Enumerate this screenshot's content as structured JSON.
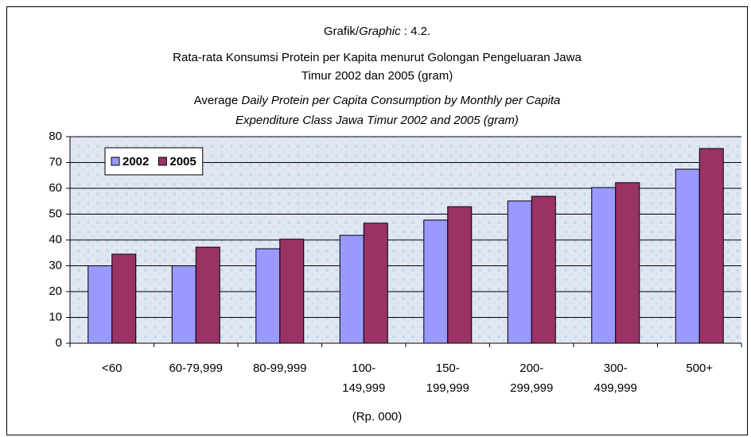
{
  "chart_data": {
    "type": "bar",
    "title_lines": [
      [
        {
          "text": "Grafik/"
        },
        {
          "text": "Graphic",
          "italic": true
        },
        {
          "text": " : 4.2."
        }
      ],
      [
        {
          "text": "Rata-rata Konsumsi Protein per Kapita menurut Golongan Pengeluaran Jawa"
        }
      ],
      [
        {
          "text": "Timur 2002 dan 2005 (gram)"
        }
      ],
      [
        {
          "text": "Average "
        },
        {
          "text": "Daily Protein per Capita Consumption by Monthly per Capita",
          "italic": true
        }
      ],
      [
        {
          "text": "Expenditure Class Jawa Timur 2002 and 2005 (gram)",
          "italic": true
        }
      ]
    ],
    "x_label": "(Rp. 000)",
    "categories": [
      [
        "<60"
      ],
      [
        "60-79,999"
      ],
      [
        "80-99,999"
      ],
      [
        "100-",
        "149,999"
      ],
      [
        "150-",
        "199,999"
      ],
      [
        "200-",
        "299,999"
      ],
      [
        "300-",
        "499,999"
      ],
      [
        "500+"
      ]
    ],
    "series": [
      {
        "name": "2002",
        "color": "#9999ff",
        "values": [
          30,
          30,
          36.6,
          41.8,
          47.7,
          55.1,
          60.3,
          67.4
        ]
      },
      {
        "name": "2005",
        "color": "#993366",
        "values": [
          34.5,
          37.2,
          40.3,
          46.5,
          52.9,
          56.9,
          62.2,
          75.4
        ]
      }
    ],
    "ylim": [
      0,
      80
    ],
    "yticks": [
      0,
      10,
      20,
      30,
      40,
      50,
      60,
      70,
      80
    ],
    "grid": true,
    "legend": "top-left"
  }
}
